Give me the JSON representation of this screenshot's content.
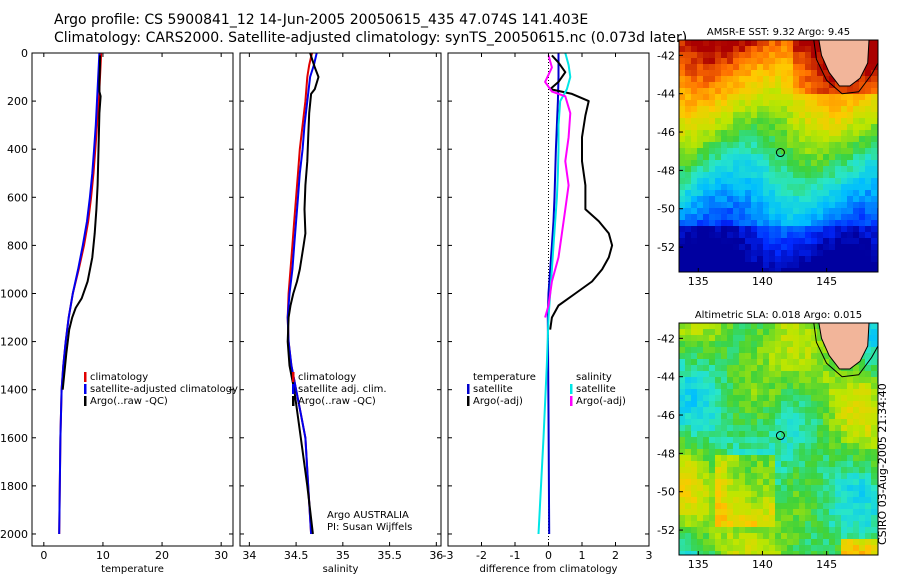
{
  "header": {
    "line1": "Argo profile: CS 5900841_12 14-Jun-2005 20050615_435 47.074S 141.403E",
    "line2": "Climatology: CARS2000. Satellite-adjusted climatology: synTS_20050615.nc (0.073d later)"
  },
  "side_stamp": "CSIRO 03-Aug-2005 21:34:40",
  "colors": {
    "climatology": "#e00000",
    "satellite": "#0000ee",
    "argo": "#000000",
    "temp_satellite": "#0000cc",
    "salinity": "#00e6e6",
    "sal_argo": "#ff00ff",
    "land": "#f2b59a"
  },
  "chart_data": [
    {
      "type": "line",
      "id": "temperature",
      "xlabel": "temperature",
      "xlim": [
        -2,
        32
      ],
      "ylim": [
        0,
        2050
      ],
      "xticks": [
        0,
        10,
        20,
        30
      ],
      "yticks": [
        0,
        200,
        400,
        600,
        800,
        1000,
        1200,
        1400,
        1600,
        1800,
        2000
      ],
      "legend": [
        "climatology",
        "satellite-adjusted climatology",
        "Argo(..raw -QC)"
      ],
      "series": [
        {
          "name": "climatology",
          "color": "#e00000",
          "x": [
            9.7,
            9.6,
            9.5,
            9.3,
            9.0,
            8.7,
            8.4,
            8.0,
            7.5,
            6.8,
            5.9,
            4.9,
            4.2,
            3.7,
            3.3,
            3.0,
            2.8,
            2.7,
            2.6
          ],
          "y": [
            0,
            50,
            100,
            200,
            300,
            400,
            500,
            600,
            700,
            800,
            900,
            1000,
            1100,
            1200,
            1300,
            1400,
            1600,
            1800,
            2000
          ]
        },
        {
          "name": "satellite-adjusted climatology",
          "color": "#0000ee",
          "x": [
            9.4,
            9.3,
            9.2,
            9.0,
            8.8,
            8.5,
            8.2,
            7.8,
            7.3,
            6.6,
            5.8,
            4.9,
            4.2,
            3.7,
            3.3,
            3.0,
            2.8,
            2.7,
            2.6
          ],
          "y": [
            0,
            50,
            100,
            200,
            300,
            400,
            500,
            600,
            700,
            800,
            900,
            1000,
            1100,
            1200,
            1300,
            1400,
            1600,
            1800,
            2000
          ]
        },
        {
          "name": "Argo(..raw -QC)",
          "color": "#000000",
          "x": [
            9.5,
            9.5,
            9.4,
            9.4,
            9.6,
            9.4,
            9.3,
            9.2,
            9.1,
            8.9,
            8.6,
            8.2,
            7.4,
            6.4,
            5.4,
            4.8,
            4.3,
            3.8,
            3.2
          ],
          "y": [
            10,
            50,
            120,
            160,
            180,
            250,
            350,
            450,
            550,
            650,
            750,
            850,
            950,
            1020,
            1060,
            1100,
            1150,
            1250,
            1400
          ]
        }
      ]
    },
    {
      "type": "line",
      "id": "salinity",
      "xlabel": "salinity",
      "xlim": [
        33.9,
        36.05
      ],
      "ylim": [
        0,
        2050
      ],
      "xticks": [
        34,
        34.5,
        35,
        35.5,
        36
      ],
      "yticks": [
        0,
        200,
        400,
        600,
        800,
        1000,
        1200,
        1400,
        1600,
        1800,
        2000
      ],
      "legend": [
        "climatology",
        "satellite adj. clim.",
        "Argo(..raw -QC)"
      ],
      "annotation": [
        "Argo AUSTRALIA",
        "PI: Susan Wijffels"
      ],
      "series": [
        {
          "name": "climatology",
          "color": "#e00000",
          "x": [
            34.67,
            34.64,
            34.62,
            34.6,
            34.57,
            34.54,
            34.52,
            34.5,
            34.48,
            34.46,
            34.44,
            34.42,
            34.41,
            34.42,
            34.45,
            34.5,
            34.55,
            34.6,
            34.63,
            34.66
          ],
          "y": [
            0,
            50,
            100,
            200,
            300,
            400,
            500,
            600,
            700,
            800,
            900,
            1000,
            1100,
            1200,
            1300,
            1400,
            1500,
            1600,
            1800,
            2000
          ]
        },
        {
          "name": "satellite adj. clim.",
          "color": "#0000ee",
          "x": [
            34.72,
            34.69,
            34.65,
            34.62,
            34.59,
            34.57,
            34.54,
            34.52,
            34.5,
            34.48,
            34.46,
            34.43,
            34.41,
            34.42,
            34.45,
            34.5,
            34.55,
            34.6,
            34.63,
            34.66
          ],
          "y": [
            0,
            50,
            100,
            200,
            300,
            400,
            500,
            600,
            700,
            800,
            900,
            1000,
            1100,
            1200,
            1300,
            1400,
            1500,
            1600,
            1800,
            2000
          ]
        },
        {
          "name": "Argo(..raw -QC)",
          "color": "#000000",
          "x": [
            34.65,
            34.7,
            34.74,
            34.7,
            34.66,
            34.64,
            34.63,
            34.62,
            34.6,
            34.59,
            34.6,
            34.58,
            34.56,
            34.54,
            34.51,
            34.47,
            34.44,
            34.42,
            34.41,
            34.43,
            34.48,
            34.55,
            34.62,
            34.68
          ],
          "y": [
            0,
            60,
            100,
            150,
            170,
            250,
            350,
            450,
            550,
            650,
            750,
            800,
            850,
            900,
            950,
            1000,
            1050,
            1100,
            1200,
            1300,
            1400,
            1600,
            1800,
            2000
          ]
        }
      ]
    },
    {
      "type": "line",
      "id": "difference",
      "xlabel": "difference from climatology",
      "xlim": [
        -3,
        3
      ],
      "ylim": [
        0,
        2050
      ],
      "xticks": [
        -3,
        -2,
        -1,
        0,
        1,
        2,
        3
      ],
      "yticks": [
        0,
        200,
        400,
        600,
        800,
        1000,
        1200,
        1400,
        1600,
        1800,
        2000
      ],
      "legend": [
        "temperature",
        "satellite",
        "Argo(-adj)",
        "salinity",
        "satellite",
        "Argo(-adj)"
      ],
      "series": [
        {
          "name": "temperature satellite",
          "color": "#0000cc",
          "x": [
            0.3,
            0.3,
            0.28,
            0.25,
            0.22,
            0.2,
            0.18,
            0.15,
            0.1,
            0.05,
            0.0,
            -0.02,
            0.0,
            0.02
          ],
          "y": [
            0,
            100,
            200,
            300,
            400,
            500,
            600,
            700,
            800,
            900,
            1000,
            1100,
            1500,
            2000
          ]
        },
        {
          "name": "temperature Argo(-adj)",
          "color": "#000000",
          "x": [
            0.1,
            0.3,
            0.5,
            0.3,
            0.05,
            0.7,
            1.2,
            1.1,
            1.0,
            1.0,
            1.1,
            1.1,
            1.5,
            1.8,
            1.9,
            1.8,
            1.6,
            1.3,
            0.8,
            0.3,
            0.1,
            0.05
          ],
          "y": [
            10,
            40,
            80,
            120,
            150,
            170,
            200,
            260,
            350,
            450,
            550,
            650,
            700,
            750,
            800,
            850,
            900,
            950,
            1000,
            1050,
            1100,
            1150
          ]
        },
        {
          "name": "salinity satellite",
          "color": "#00e6e6",
          "x": [
            0.5,
            0.6,
            0.65,
            0.55,
            0.35,
            0.3,
            0.3,
            0.28,
            0.25,
            0.2,
            0.15,
            0.1,
            0.05,
            0.0,
            -0.05,
            -0.15,
            -0.3
          ],
          "y": [
            0,
            50,
            100,
            150,
            200,
            300,
            400,
            500,
            600,
            700,
            800,
            900,
            1000,
            1100,
            1300,
            1600,
            2000
          ]
        },
        {
          "name": "salinity Argo(-adj)",
          "color": "#ff00ff",
          "x": [
            0.0,
            0.1,
            -0.1,
            0.1,
            0.5,
            0.65,
            0.6,
            0.5,
            0.6,
            0.5,
            0.4,
            0.3,
            0.1,
            0.0,
            -0.1
          ],
          "y": [
            10,
            60,
            120,
            160,
            180,
            250,
            350,
            450,
            550,
            650,
            750,
            850,
            950,
            1050,
            1100
          ]
        }
      ]
    },
    {
      "type": "heatmap",
      "id": "sst-map",
      "title": "AMSR-E SST: 9.32 Argo: 9.45",
      "xlim": [
        133.5,
        149
      ],
      "ylim": [
        -53.3,
        -41.2
      ],
      "xticks": [
        135,
        140,
        145
      ],
      "yticks": [
        -42,
        -44,
        -46,
        -48,
        -50,
        -52
      ],
      "profile_point": [
        141.4,
        -47.07
      ]
    },
    {
      "type": "heatmap",
      "id": "sla-map",
      "title": "Altimetric SLA: 0.018 Argo: 0.015",
      "xlim": [
        133.5,
        149
      ],
      "ylim": [
        -53.3,
        -41.2
      ],
      "xticks": [
        135,
        140,
        145
      ],
      "yticks": [
        -42,
        -44,
        -46,
        -48,
        -50,
        -52
      ],
      "profile_point": [
        141.4,
        -47.07
      ]
    }
  ]
}
